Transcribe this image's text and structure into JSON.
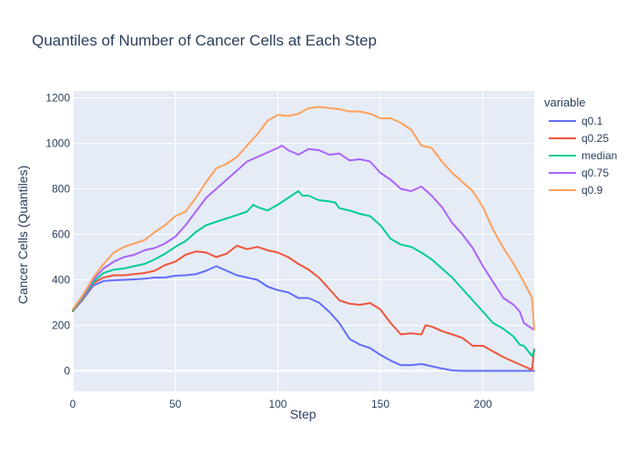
{
  "chart_data": {
    "type": "line",
    "title": "Quantiles of Number of Cancer Cells at Each Step",
    "xlabel": "Step",
    "ylabel": "Cancer Cells (Quantiles)",
    "xlim": [
      0,
      225
    ],
    "ylim": [
      -90,
      1230
    ],
    "x_ticks": [
      0,
      50,
      100,
      150,
      200
    ],
    "y_ticks": [
      0,
      200,
      400,
      600,
      800,
      1000,
      1200
    ],
    "grid": true,
    "legend": {
      "title": "variable",
      "placement": "right"
    },
    "colors": {
      "plot_bg": "#E5ECF6",
      "grid": "#ffffff",
      "text": "#2a3f5f"
    },
    "series": [
      {
        "name": "q0.1",
        "color": "#636efa",
        "points": [
          [
            0,
            262
          ],
          [
            5,
            315
          ],
          [
            10,
            375
          ],
          [
            15,
            395
          ],
          [
            20,
            398
          ],
          [
            25,
            400
          ],
          [
            30,
            402
          ],
          [
            35,
            405
          ],
          [
            40,
            410
          ],
          [
            45,
            410
          ],
          [
            50,
            418
          ],
          [
            55,
            420
          ],
          [
            60,
            425
          ],
          [
            65,
            440
          ],
          [
            70,
            460
          ],
          [
            75,
            440
          ],
          [
            80,
            420
          ],
          [
            85,
            410
          ],
          [
            90,
            400
          ],
          [
            95,
            370
          ],
          [
            100,
            355
          ],
          [
            105,
            345
          ],
          [
            110,
            320
          ],
          [
            115,
            320
          ],
          [
            120,
            300
          ],
          [
            125,
            260
          ],
          [
            130,
            210
          ],
          [
            135,
            140
          ],
          [
            140,
            115
          ],
          [
            145,
            100
          ],
          [
            150,
            70
          ],
          [
            155,
            45
          ],
          [
            160,
            25
          ],
          [
            165,
            25
          ],
          [
            170,
            30
          ],
          [
            175,
            20
          ],
          [
            180,
            10
          ],
          [
            185,
            2
          ],
          [
            190,
            0
          ],
          [
            195,
            0
          ],
          [
            200,
            0
          ],
          [
            205,
            0
          ],
          [
            210,
            0
          ],
          [
            215,
            0
          ],
          [
            220,
            0
          ],
          [
            225,
            0
          ]
        ]
      },
      {
        "name": "q0.25",
        "color": "#EF553B",
        "points": [
          [
            0,
            262
          ],
          [
            5,
            320
          ],
          [
            10,
            385
          ],
          [
            15,
            410
          ],
          [
            20,
            420
          ],
          [
            25,
            420
          ],
          [
            30,
            425
          ],
          [
            35,
            430
          ],
          [
            40,
            440
          ],
          [
            45,
            465
          ],
          [
            50,
            480
          ],
          [
            55,
            510
          ],
          [
            60,
            525
          ],
          [
            65,
            520
          ],
          [
            70,
            500
          ],
          [
            75,
            515
          ],
          [
            80,
            550
          ],
          [
            85,
            535
          ],
          [
            90,
            545
          ],
          [
            95,
            530
          ],
          [
            100,
            520
          ],
          [
            105,
            500
          ],
          [
            110,
            470
          ],
          [
            115,
            445
          ],
          [
            120,
            410
          ],
          [
            125,
            360
          ],
          [
            130,
            310
          ],
          [
            135,
            295
          ],
          [
            140,
            290
          ],
          [
            145,
            298
          ],
          [
            150,
            270
          ],
          [
            155,
            210
          ],
          [
            160,
            160
          ],
          [
            165,
            165
          ],
          [
            170,
            160
          ],
          [
            172,
            200
          ],
          [
            175,
            195
          ],
          [
            180,
            175
          ],
          [
            185,
            160
          ],
          [
            190,
            145
          ],
          [
            195,
            110
          ],
          [
            200,
            110
          ],
          [
            205,
            85
          ],
          [
            210,
            60
          ],
          [
            215,
            40
          ],
          [
            220,
            20
          ],
          [
            224,
            5
          ],
          [
            225,
            95
          ]
        ]
      },
      {
        "name": "median",
        "color": "#00cc96",
        "points": [
          [
            0,
            265
          ],
          [
            5,
            325
          ],
          [
            10,
            390
          ],
          [
            15,
            430
          ],
          [
            20,
            445
          ],
          [
            25,
            450
          ],
          [
            30,
            460
          ],
          [
            35,
            470
          ],
          [
            40,
            490
          ],
          [
            45,
            515
          ],
          [
            50,
            545
          ],
          [
            55,
            570
          ],
          [
            60,
            610
          ],
          [
            65,
            640
          ],
          [
            70,
            655
          ],
          [
            75,
            670
          ],
          [
            80,
            685
          ],
          [
            85,
            700
          ],
          [
            88,
            730
          ],
          [
            90,
            720
          ],
          [
            95,
            705
          ],
          [
            100,
            730
          ],
          [
            105,
            760
          ],
          [
            110,
            790
          ],
          [
            112,
            770
          ],
          [
            115,
            770
          ],
          [
            120,
            750
          ],
          [
            125,
            745
          ],
          [
            128,
            740
          ],
          [
            130,
            715
          ],
          [
            135,
            705
          ],
          [
            140,
            690
          ],
          [
            145,
            680
          ],
          [
            150,
            640
          ],
          [
            155,
            580
          ],
          [
            160,
            555
          ],
          [
            165,
            545
          ],
          [
            170,
            520
          ],
          [
            175,
            490
          ],
          [
            180,
            450
          ],
          [
            185,
            410
          ],
          [
            190,
            360
          ],
          [
            195,
            310
          ],
          [
            200,
            260
          ],
          [
            205,
            210
          ],
          [
            210,
            185
          ],
          [
            215,
            150
          ],
          [
            218,
            115
          ],
          [
            220,
            110
          ],
          [
            224,
            65
          ],
          [
            225,
            90
          ]
        ]
      },
      {
        "name": "q0.75",
        "color": "#ab63fa",
        "points": [
          [
            0,
            270
          ],
          [
            5,
            330
          ],
          [
            10,
            400
          ],
          [
            15,
            450
          ],
          [
            20,
            480
          ],
          [
            25,
            500
          ],
          [
            30,
            510
          ],
          [
            35,
            530
          ],
          [
            40,
            540
          ],
          [
            45,
            560
          ],
          [
            50,
            590
          ],
          [
            55,
            640
          ],
          [
            60,
            700
          ],
          [
            65,
            760
          ],
          [
            70,
            800
          ],
          [
            75,
            840
          ],
          [
            80,
            880
          ],
          [
            85,
            920
          ],
          [
            90,
            940
          ],
          [
            95,
            960
          ],
          [
            100,
            980
          ],
          [
            102,
            990
          ],
          [
            105,
            970
          ],
          [
            110,
            950
          ],
          [
            115,
            975
          ],
          [
            120,
            970
          ],
          [
            125,
            950
          ],
          [
            130,
            955
          ],
          [
            135,
            925
          ],
          [
            140,
            930
          ],
          [
            145,
            920
          ],
          [
            150,
            870
          ],
          [
            155,
            840
          ],
          [
            160,
            800
          ],
          [
            165,
            790
          ],
          [
            170,
            810
          ],
          [
            175,
            770
          ],
          [
            180,
            720
          ],
          [
            185,
            650
          ],
          [
            190,
            600
          ],
          [
            195,
            540
          ],
          [
            200,
            460
          ],
          [
            205,
            390
          ],
          [
            210,
            320
          ],
          [
            215,
            290
          ],
          [
            218,
            260
          ],
          [
            220,
            210
          ],
          [
            225,
            180
          ]
        ]
      },
      {
        "name": "q0.9",
        "color": "#FFA15A",
        "points": [
          [
            0,
            270
          ],
          [
            5,
            335
          ],
          [
            10,
            410
          ],
          [
            15,
            470
          ],
          [
            20,
            520
          ],
          [
            25,
            545
          ],
          [
            30,
            560
          ],
          [
            35,
            575
          ],
          [
            40,
            610
          ],
          [
            45,
            640
          ],
          [
            50,
            680
          ],
          [
            55,
            700
          ],
          [
            60,
            760
          ],
          [
            65,
            830
          ],
          [
            70,
            890
          ],
          [
            75,
            910
          ],
          [
            80,
            940
          ],
          [
            85,
            990
          ],
          [
            90,
            1040
          ],
          [
            95,
            1100
          ],
          [
            100,
            1125
          ],
          [
            105,
            1120
          ],
          [
            110,
            1130
          ],
          [
            115,
            1155
          ],
          [
            120,
            1160
          ],
          [
            125,
            1155
          ],
          [
            130,
            1150
          ],
          [
            135,
            1140
          ],
          [
            140,
            1140
          ],
          [
            145,
            1130
          ],
          [
            150,
            1110
          ],
          [
            155,
            1110
          ],
          [
            160,
            1090
          ],
          [
            165,
            1060
          ],
          [
            170,
            990
          ],
          [
            175,
            980
          ],
          [
            180,
            920
          ],
          [
            185,
            870
          ],
          [
            190,
            830
          ],
          [
            195,
            790
          ],
          [
            200,
            720
          ],
          [
            205,
            620
          ],
          [
            210,
            540
          ],
          [
            215,
            470
          ],
          [
            220,
            390
          ],
          [
            224,
            320
          ],
          [
            225,
            180
          ]
        ]
      }
    ]
  }
}
